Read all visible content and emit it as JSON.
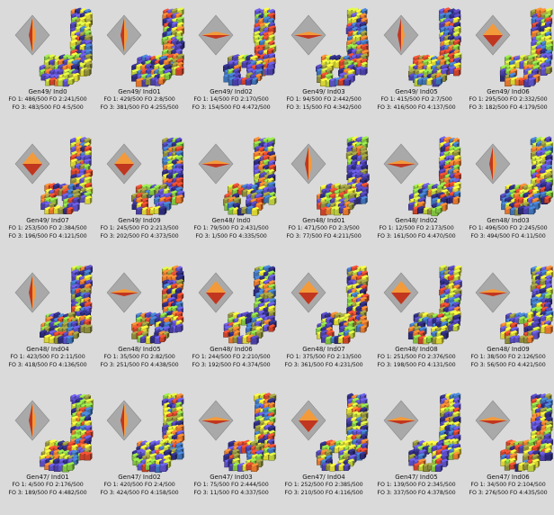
{
  "colors": {
    "background": "#dadada",
    "diamond_fill": "#a9a9a9",
    "pointer_light": "#f39a3a",
    "pointer_dark": "#c1361f",
    "cube_palette": [
      "#4a3fa6",
      "#5a4ec0",
      "#2c2a78",
      "#d8d234",
      "#b9c93a",
      "#7fbf3f",
      "#e0762c",
      "#c8422a",
      "#8a8a3a",
      "#3d6fb3"
    ]
  },
  "individuals": [
    {
      "label": "Gen49/ Ind0",
      "fo1": "FO 1: 486/500",
      "fo2": "FO 2:241/500",
      "fo3": "FO 3: 483/500",
      "fo4": "FO 4:5/500",
      "orientation": "vertical",
      "icon": "orientation-diamond-icon"
    },
    {
      "label": "Gen49/ Ind01",
      "fo1": "FO 1: 429/500",
      "fo2": "FO 2:8/500",
      "fo3": "FO 3: 381/500",
      "fo4": "FO 4:255/500",
      "orientation": "vertical",
      "icon": "orientation-diamond-icon"
    },
    {
      "label": "Gen49/ Ind02",
      "fo1": "FO 1: 14/500",
      "fo2": "FO 2:170/500",
      "fo3": "FO 3: 154/500",
      "fo4": "FO 4:472/500",
      "orientation": "horizontal",
      "icon": "orientation-diamond-icon"
    },
    {
      "label": "Gen49/ Ind03",
      "fo1": "FO 1: 94/500",
      "fo2": "FO 2:442/500",
      "fo3": "FO 3: 15/500",
      "fo4": "FO 4:342/500",
      "orientation": "horizontal",
      "icon": "orientation-diamond-icon"
    },
    {
      "label": "Gen49/ Ind05",
      "fo1": "FO 1: 415/500",
      "fo2": "FO 2:7/500",
      "fo3": "FO 3: 416/500",
      "fo4": "FO 4:137/500",
      "orientation": "vertical",
      "icon": "orientation-diamond-icon"
    },
    {
      "label": "Gen49/ Ind06",
      "fo1": "FO 1: 295/500",
      "fo2": "FO 2:332/500",
      "fo3": "FO 3: 182/500",
      "fo4": "FO 4:179/500",
      "orientation": "mixed",
      "icon": "orientation-diamond-icon"
    },
    {
      "label": "Gen49/ Ind07",
      "fo1": "FO 1: 253/500",
      "fo2": "FO 2:384/500",
      "fo3": "FO 3: 196/500",
      "fo4": "FO 4:121/500",
      "orientation": "mixed",
      "icon": "orientation-diamond-icon"
    },
    {
      "label": "Gen49/ Ind09",
      "fo1": "FO 1: 245/500",
      "fo2": "FO 2:213/500",
      "fo3": "FO 3: 202/500",
      "fo4": "FO 4:373/500",
      "orientation": "mixed",
      "icon": "orientation-diamond-icon"
    },
    {
      "label": "Gen48/ Ind0",
      "fo1": "FO 1: 79/500",
      "fo2": "FO 2:431/500",
      "fo3": "FO 3: 1/500",
      "fo4": "FO 4:335/500",
      "orientation": "horizontal",
      "icon": "orientation-diamond-icon"
    },
    {
      "label": "Gen48/ Ind01",
      "fo1": "FO 1: 471/500",
      "fo2": "FO 2:3/500",
      "fo3": "FO 3: 77/500",
      "fo4": "FO 4:211/500",
      "orientation": "vertical",
      "icon": "orientation-diamond-icon"
    },
    {
      "label": "Gen48/ Ind02",
      "fo1": "FO 1: 12/500",
      "fo2": "FO 2:173/500",
      "fo3": "FO 3: 161/500",
      "fo4": "FO 4:470/500",
      "orientation": "horizontal",
      "icon": "orientation-diamond-icon"
    },
    {
      "label": "Gen48/ Ind03",
      "fo1": "FO 1: 496/500",
      "fo2": "FO 2:245/500",
      "fo3": "FO 3: 494/500",
      "fo4": "FO 4:11/500",
      "orientation": "vertical",
      "icon": "orientation-diamond-icon"
    },
    {
      "label": "Gen48/ Ind04",
      "fo1": "FO 1: 423/500",
      "fo2": "FO 2:11/500",
      "fo3": "FO 3: 418/500",
      "fo4": "FO 4:136/500",
      "orientation": "vertical",
      "icon": "orientation-diamond-icon"
    },
    {
      "label": "Gen48/ Ind05",
      "fo1": "FO 1: 35/500",
      "fo2": "FO 2:82/500",
      "fo3": "FO 3: 251/500",
      "fo4": "FO 4:438/500",
      "orientation": "horizontal",
      "icon": "orientation-diamond-icon"
    },
    {
      "label": "Gen48/ Ind06",
      "fo1": "FO 1: 244/500",
      "fo2": "FO 2:210/500",
      "fo3": "FO 3: 192/500",
      "fo4": "FO 4:374/500",
      "orientation": "mixed",
      "icon": "orientation-diamond-icon"
    },
    {
      "label": "Gen48/ Ind07",
      "fo1": "FO 1: 375/500",
      "fo2": "FO 2:13/500",
      "fo3": "FO 3: 361/500",
      "fo4": "FO 4:231/500",
      "orientation": "mixed",
      "icon": "orientation-diamond-icon"
    },
    {
      "label": "Gen48/ Ind08",
      "fo1": "FO 1: 251/500",
      "fo2": "FO 2:376/500",
      "fo3": "FO 3: 198/500",
      "fo4": "FO 4:131/500",
      "orientation": "mixed",
      "icon": "orientation-diamond-icon"
    },
    {
      "label": "Gen48/ Ind09",
      "fo1": "FO 1: 38/500",
      "fo2": "FO 2:126/500",
      "fo3": "FO 3: 56/500",
      "fo4": "FO 4:421/500",
      "orientation": "horizontal",
      "icon": "orientation-diamond-icon"
    },
    {
      "label": "Gen47/ Ind01",
      "fo1": "FO 1: 4/500",
      "fo2": "FO 2:176/500",
      "fo3": "FO 3: 189/500",
      "fo4": "FO 4:482/500",
      "orientation": "vertical",
      "icon": "orientation-diamond-icon"
    },
    {
      "label": "Gen47/ Ind02",
      "fo1": "FO 1: 420/500",
      "fo2": "FO 2:4/500",
      "fo3": "FO 3: 424/500",
      "fo4": "FO 4:158/500",
      "orientation": "vertical",
      "icon": "orientation-diamond-icon"
    },
    {
      "label": "Gen47/ Ind03",
      "fo1": "FO 1: 75/500",
      "fo2": "FO 2:444/500",
      "fo3": "FO 3: 11/500",
      "fo4": "FO 4:337/500",
      "orientation": "horizontal",
      "icon": "orientation-diamond-icon"
    },
    {
      "label": "Gen47/ Ind04",
      "fo1": "FO 1: 252/500",
      "fo2": "FO 2:385/500",
      "fo3": "FO 3: 210/500",
      "fo4": "FO 4:116/500",
      "orientation": "mixed",
      "icon": "orientation-diamond-icon"
    },
    {
      "label": "Gen47/ Ind05",
      "fo1": "FO 1: 139/500",
      "fo2": "FO 2:345/500",
      "fo3": "FO 3: 337/500",
      "fo4": "FO 4:378/500",
      "orientation": "horizontal",
      "icon": "orientation-diamond-icon"
    },
    {
      "label": "Gen47/ Ind06",
      "fo1": "FO 1: 34/500",
      "fo2": "FO 2:104/500",
      "fo3": "FO 3: 276/500",
      "fo4": "FO 4:435/500",
      "orientation": "horizontal",
      "icon": "orientation-diamond-icon"
    }
  ]
}
